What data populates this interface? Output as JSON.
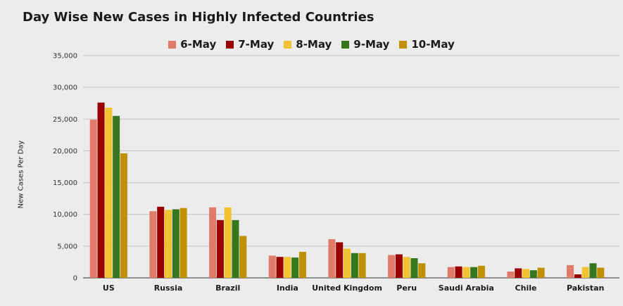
{
  "chart_data": {
    "type": "bar",
    "title": "Day Wise New Cases in Highly Infected Countries",
    "ylabel": "New Cases Per Day",
    "xlabel": "",
    "ylim": [
      0,
      35000
    ],
    "yticks": [
      "0",
      "5,000",
      "10,000",
      "15,000",
      "20,000",
      "25,000",
      "30,000",
      "35,000"
    ],
    "ytick_values": [
      0,
      5000,
      10000,
      15000,
      20000,
      25000,
      30000,
      35000
    ],
    "grid": true,
    "legend_position": "top",
    "categories": [
      "US",
      "Russia",
      "Brazil",
      "India",
      "United Kingdom",
      "Peru",
      "Saudi Arabia",
      "Chile",
      "Pakistan"
    ],
    "series": [
      {
        "name": "6-May",
        "color": "#e07b6a",
        "values": [
          24900,
          10500,
          11100,
          3500,
          6100,
          3600,
          1700,
          1000,
          2000
        ]
      },
      {
        "name": "7-May",
        "color": "#990000",
        "values": [
          27600,
          11200,
          9100,
          3300,
          5600,
          3700,
          1800,
          1500,
          550
        ]
      },
      {
        "name": "8-May",
        "color": "#f1c232",
        "values": [
          26800,
          10700,
          11100,
          3300,
          4600,
          3300,
          1700,
          1400,
          1700
        ]
      },
      {
        "name": "9-May",
        "color": "#38761d",
        "values": [
          25500,
          10800,
          9100,
          3200,
          3900,
          3100,
          1700,
          1200,
          2300
        ]
      },
      {
        "name": "10-May",
        "color": "#bf9000",
        "values": [
          19600,
          11000,
          6600,
          4100,
          3900,
          2300,
          1900,
          1600,
          1600
        ]
      }
    ]
  }
}
